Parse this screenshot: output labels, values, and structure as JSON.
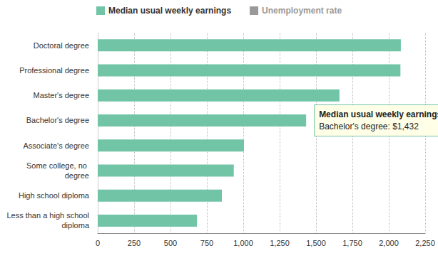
{
  "chart_data": {
    "type": "bar",
    "orientation": "horizontal",
    "categories": [
      "Doctoral degree",
      "Professional degree",
      "Master's degree",
      "Bachelor's degree",
      "Associate's degree",
      "Some college, no degree",
      "High school diploma",
      "Less than a high school diploma"
    ],
    "series": [
      {
        "name": "Median usual weekly earnings",
        "color": "#72c4a7",
        "values": [
          2083,
          2080,
          1661,
          1432,
          1005,
          935,
          853,
          682
        ]
      },
      {
        "name": "Unemployment rate",
        "color": "#999999",
        "values": [
          null,
          null,
          null,
          null,
          null,
          null,
          null,
          null
        ]
      }
    ],
    "xlim": [
      0,
      2250
    ],
    "xticks": [
      0,
      250,
      500,
      750,
      {
        "value": 1000,
        "label": "1,000"
      },
      {
        "value": 1250,
        "label": "1,250"
      },
      {
        "value": 1500,
        "label": "1,500"
      },
      {
        "value": 1750,
        "label": "1,750"
      },
      {
        "value": 2000,
        "label": "2,000"
      },
      {
        "value": 2250,
        "label": "2,250"
      }
    ],
    "grid": true,
    "legend": "top-left",
    "annotations": [
      {
        "category": "Bachelor's degree",
        "title": "Median usual weekly earnings",
        "text": "Bachelor's degree: $1,432"
      }
    ]
  }
}
